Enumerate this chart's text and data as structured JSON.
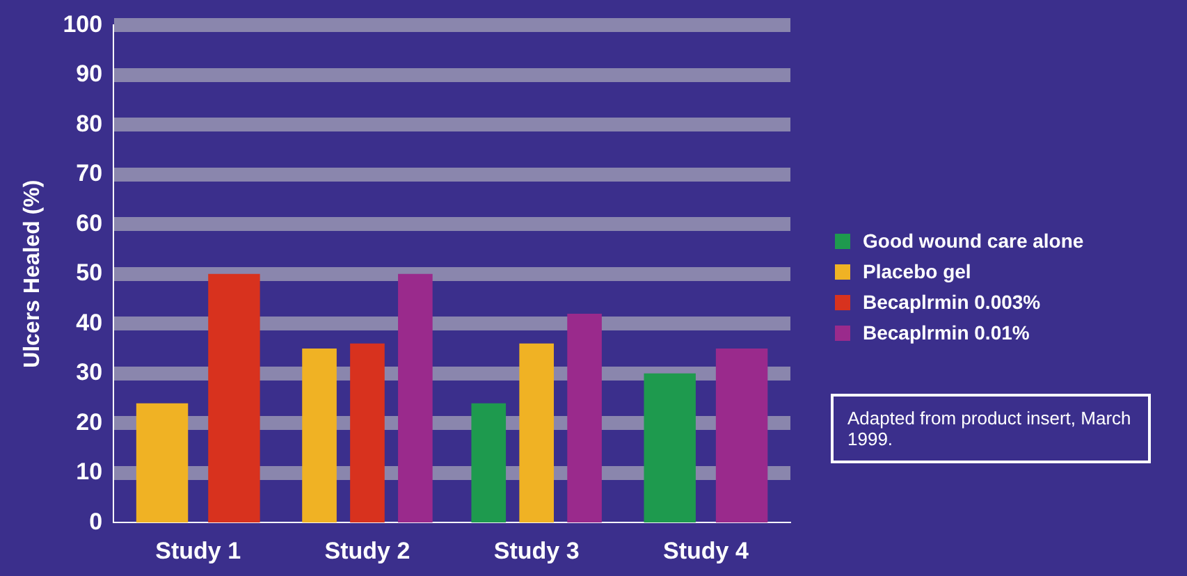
{
  "chart_data": {
    "type": "bar",
    "ylabel": "Ulcers Healed (%)",
    "categories": [
      "Study 1",
      "Study 2",
      "Study 3",
      "Study 4"
    ],
    "series": [
      {
        "name": "Good wound care alone",
        "color": "#1e9a4e",
        "values": [
          null,
          null,
          24,
          30
        ]
      },
      {
        "name": "Placebo gel",
        "color": "#f0b224",
        "values": [
          24,
          35,
          36,
          null
        ]
      },
      {
        "name": "Becaplrmin 0.003%",
        "color": "#d8321e",
        "values": [
          50,
          36,
          null,
          null
        ]
      },
      {
        "name": "Becaplrmin 0.01%",
        "color": "#9a2a8c",
        "values": [
          null,
          50,
          42,
          35
        ]
      }
    ],
    "ylim": [
      0,
      100
    ],
    "yticks": [
      0,
      10,
      20,
      30,
      40,
      50,
      60,
      70,
      80,
      90,
      100
    ],
    "grid": "y",
    "legend": "right",
    "annotations": [
      "Adapted from product insert, March 1999."
    ]
  }
}
